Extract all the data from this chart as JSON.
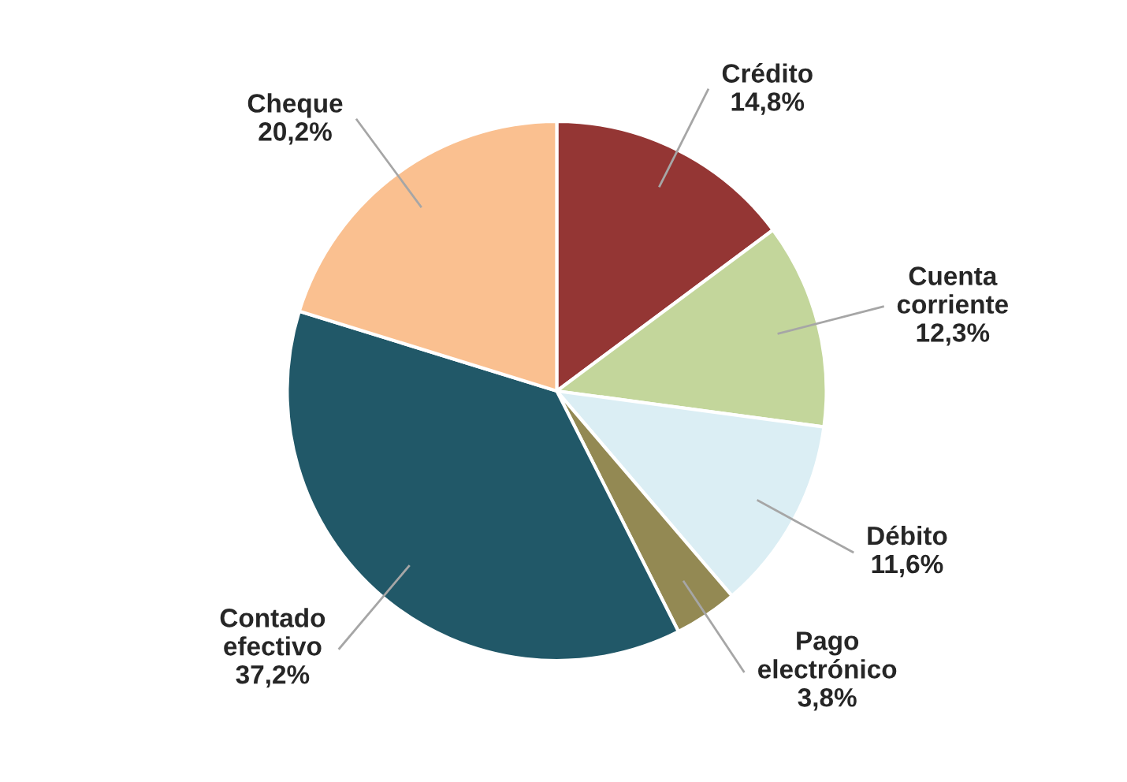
{
  "chart_data": {
    "type": "pie",
    "categories": [
      "Crédito",
      "Cuenta\ncorriente",
      "Débito",
      "Pago\nelectrónico",
      "Contado\nefectivo",
      "Cheque"
    ],
    "values": [
      14.8,
      12.3,
      11.6,
      3.8,
      37.2,
      20.2
    ],
    "value_labels": [
      "14,8%",
      "12,3%",
      "11,6%",
      "3,8%",
      "37,2%",
      "20,2%"
    ],
    "colors": [
      "#943634",
      "#c3d69b",
      "#dbeef4",
      "#938953",
      "#215868",
      "#fac090"
    ],
    "legend": false
  }
}
